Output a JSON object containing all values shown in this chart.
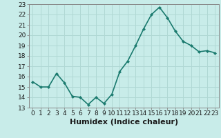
{
  "x": [
    0,
    1,
    2,
    3,
    4,
    5,
    6,
    7,
    8,
    9,
    10,
    11,
    12,
    13,
    14,
    15,
    16,
    17,
    18,
    19,
    20,
    21,
    22,
    23
  ],
  "y": [
    15.5,
    15.0,
    15.0,
    16.3,
    15.4,
    14.1,
    14.0,
    13.3,
    14.0,
    13.4,
    14.3,
    16.5,
    17.5,
    19.0,
    20.6,
    22.0,
    22.7,
    21.7,
    20.4,
    19.4,
    19.0,
    18.4,
    18.5,
    18.3
  ],
  "line_color": "#1a7a6e",
  "marker": "D",
  "marker_size": 2.2,
  "background_color": "#c8ece9",
  "grid_color": "#b0d8d4",
  "xlabel": "Humidex (Indice chaleur)",
  "ylim": [
    13,
    23
  ],
  "xlim": [
    -0.5,
    23.5
  ],
  "yticks": [
    13,
    14,
    15,
    16,
    17,
    18,
    19,
    20,
    21,
    22,
    23
  ],
  "xticks": [
    0,
    1,
    2,
    3,
    4,
    5,
    6,
    7,
    8,
    9,
    10,
    11,
    12,
    13,
    14,
    15,
    16,
    17,
    18,
    19,
    20,
    21,
    22,
    23
  ],
  "tick_fontsize": 6.5,
  "xlabel_fontsize": 8,
  "line_width": 1.2,
  "spine_color": "#888888",
  "text_color": "#1a1a1a"
}
